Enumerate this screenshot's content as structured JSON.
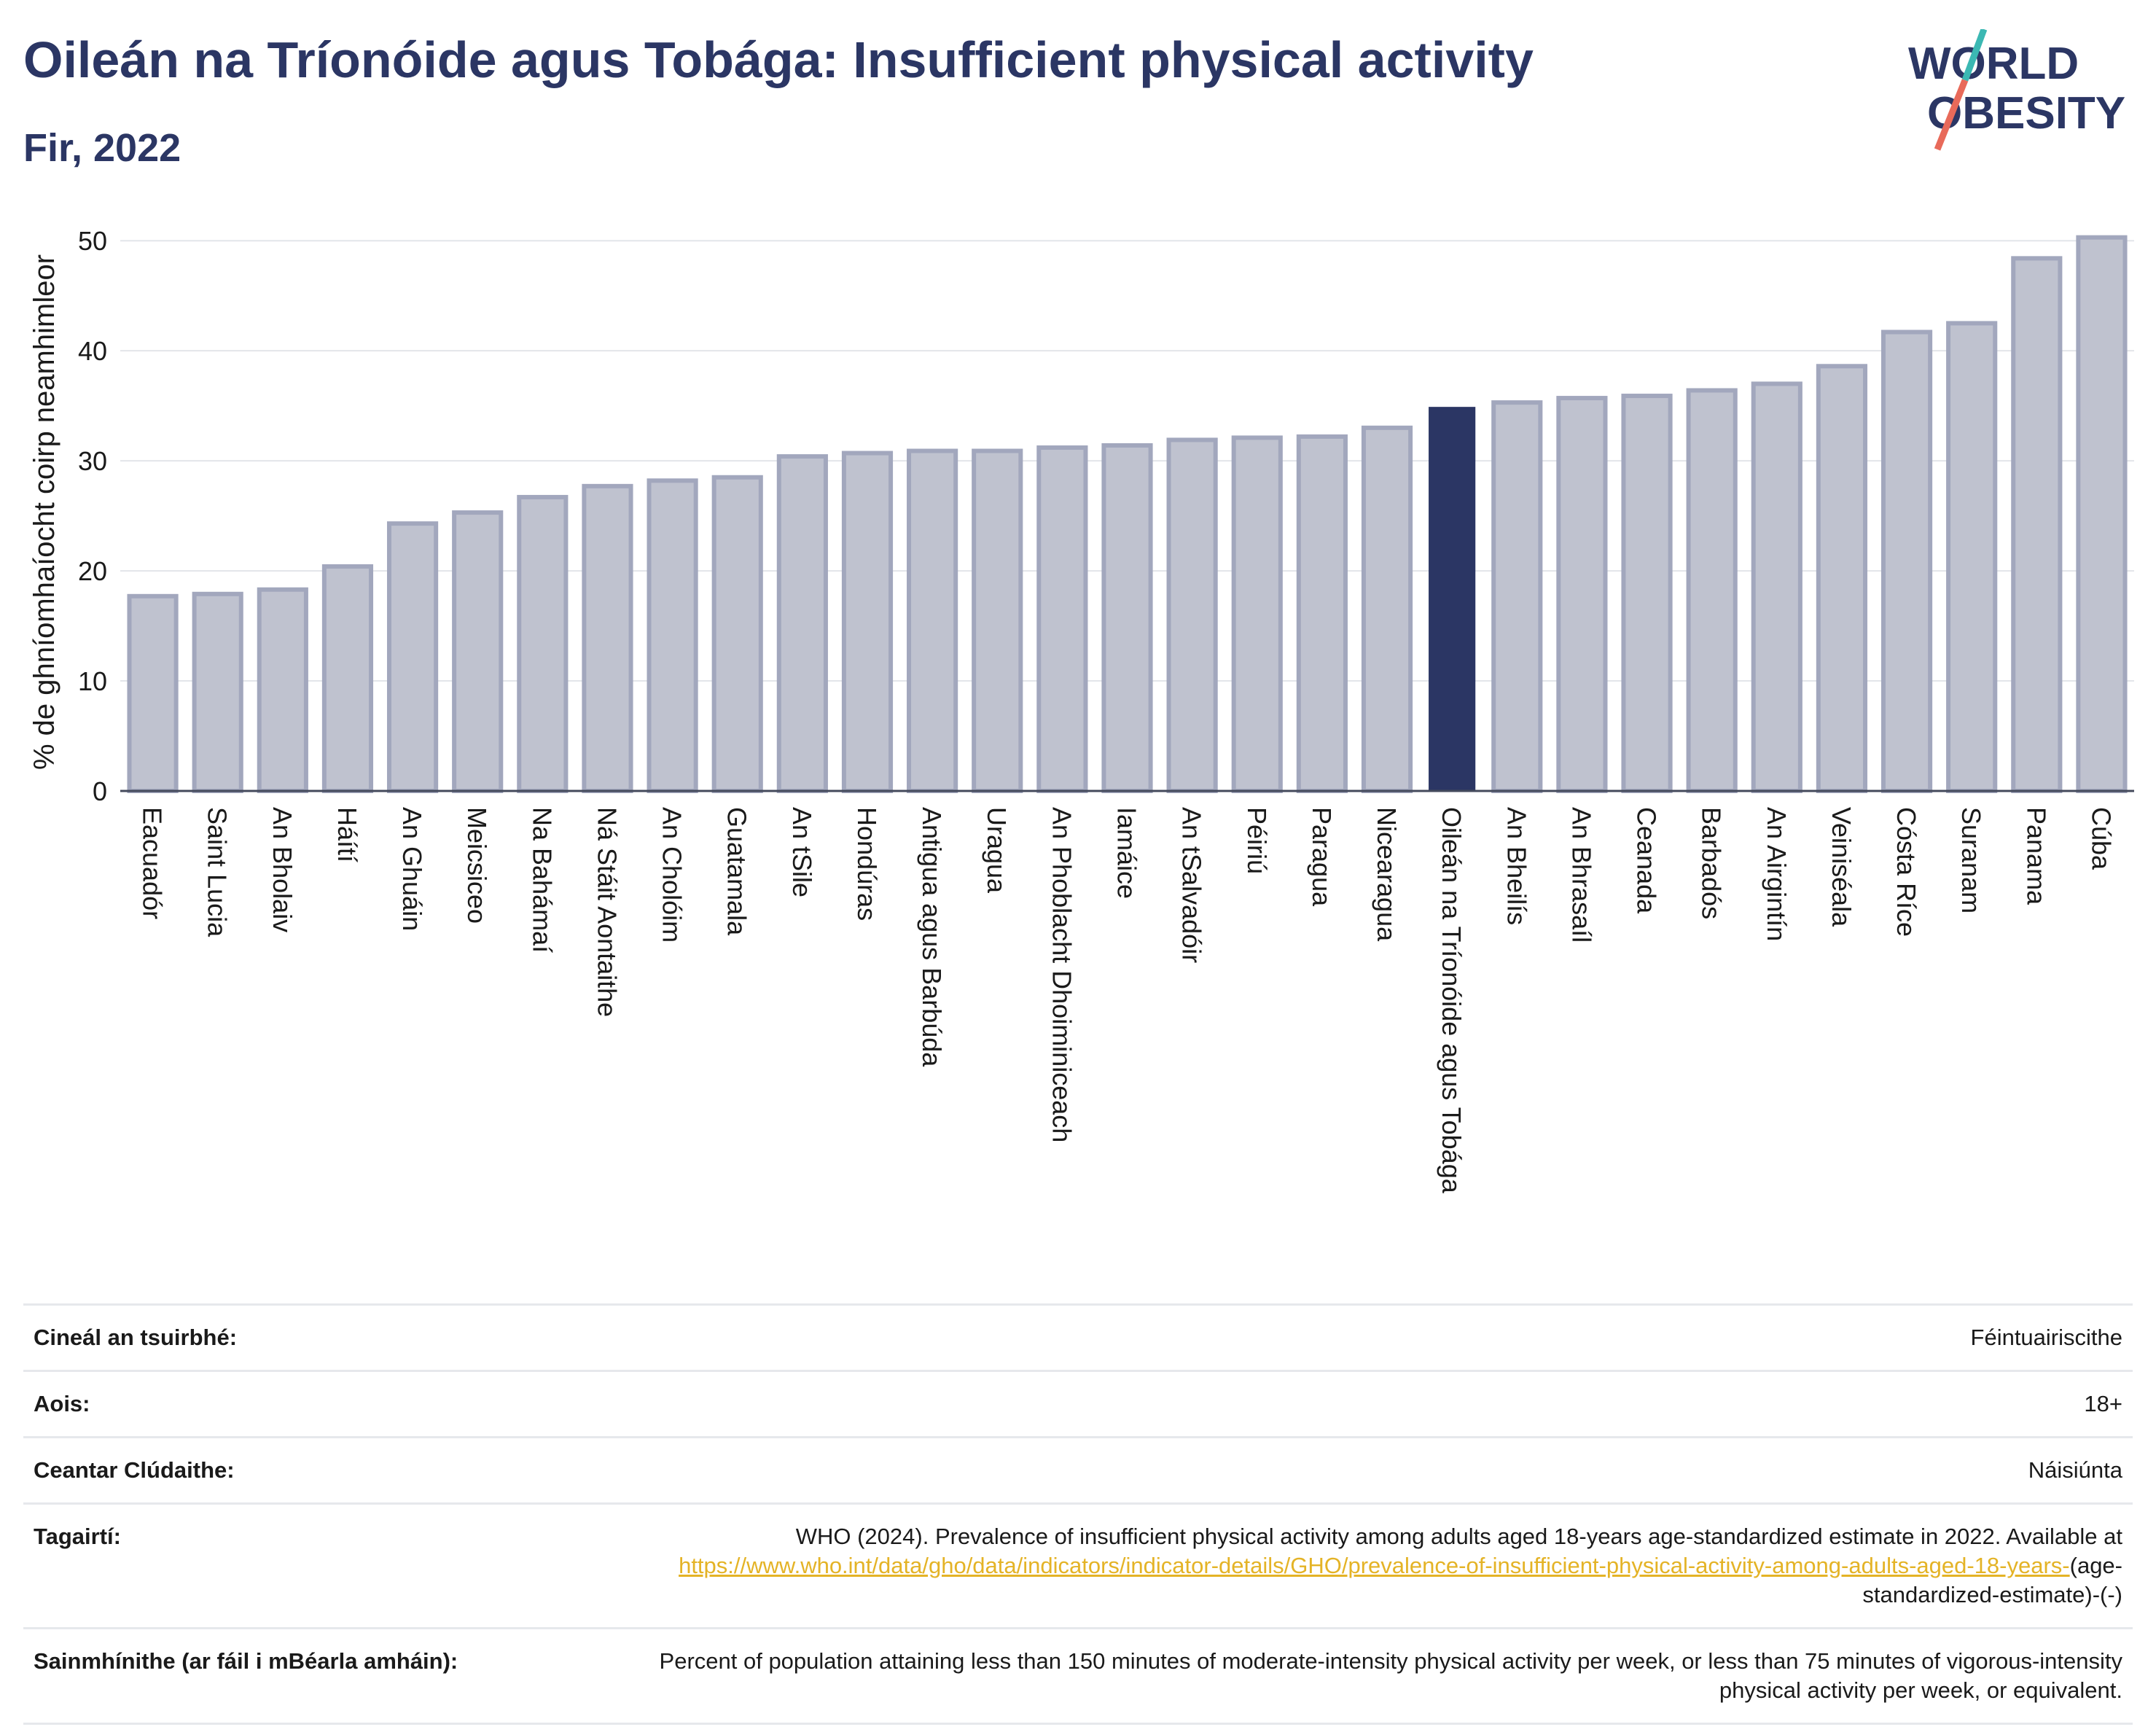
{
  "header": {
    "title": "Oileán na Tríonóide agus Tobága: Insufficient physical activity",
    "subtitle": "Fir, 2022",
    "logo_line1": "WORLD",
    "logo_line2": "OBESITY"
  },
  "colors": {
    "highlight_bar": "#2b3664",
    "other_bar": "#bfc2cf",
    "other_bar_edge": "#a2a7bd",
    "title": "#2b3664",
    "link": "#e4b326",
    "logo_slash_top": "#3bb8b3",
    "logo_slash_bottom": "#e86a5a"
  },
  "chart_data": {
    "type": "bar",
    "title": "",
    "xlabel": "",
    "ylabel": "% de ghníomhaíocht coirp neamhimleor",
    "ylim": [
      0,
      52
    ],
    "yticks": [
      0,
      10,
      20,
      30,
      40,
      50
    ],
    "grid": true,
    "highlight": "Oileán na Tríonóide agus Tobága",
    "categories": [
      "Eacuadór",
      "Saint Lucia",
      "An Bholaiv",
      "Háítí",
      "An Ghuáin",
      "Meicsiceo",
      "Na Bahámaí",
      "Ná Stáit Aontaithe",
      "An Cholóim",
      "Guatamala",
      "An tSile",
      "Hondúras",
      "Antigua agus Barbúda",
      "Uragua",
      "An Phoblacht Dhoiminiceach",
      "Iamáice",
      "An tSalvadóir",
      "Péiriú",
      "Paragua",
      "Nicearagua",
      "Oileán na Tríonóide agus Tobága",
      "An Bheilís",
      "An Bhrasaíl",
      "Ceanada",
      "Barbadós",
      "An Airgintín",
      "Veiniséala",
      "Cósta Ríce",
      "Suranam",
      "Panama",
      "Cúba"
    ],
    "values": [
      17.7,
      17.9,
      18.3,
      20.4,
      24.3,
      25.3,
      26.7,
      27.7,
      28.2,
      28.5,
      30.4,
      30.7,
      30.9,
      30.9,
      31.2,
      31.4,
      31.9,
      32.1,
      32.2,
      33.0,
      34.9,
      35.3,
      35.7,
      35.9,
      36.4,
      37.0,
      38.6,
      41.7,
      42.5,
      48.4,
      50.3
    ]
  },
  "info": {
    "survey_type_label": "Cineál an tsuirbhé:",
    "survey_type_value": "Féintuairiscithe",
    "age_label": "Aois:",
    "age_value": "18+",
    "area_label": "Ceantar Clúdaithe:",
    "area_value": "Náisiúnta",
    "references_label": "Tagairtí:",
    "references_text": "WHO (2024). Prevalence of insufficient physical activity among adults aged 18-years age-standardized estimate in 2022. Available at",
    "references_link": "https://www.who.int/data/gho/data/indicators/indicator-details/GHO/prevalence-of-insufficient-physical-activity-among-adults-aged-18-years-",
    "references_suffix": "(age-standardized-estimate)-(-)",
    "definitions_label": "Sainmhínithe (ar fáil i mBéarla amháin):",
    "definitions_text": "Percent of population attaining less than 150 minutes of moderate-intensity physical activity per week, or less than 75 minutes of vigorous-intensity physical activity per week, or equivalent."
  }
}
